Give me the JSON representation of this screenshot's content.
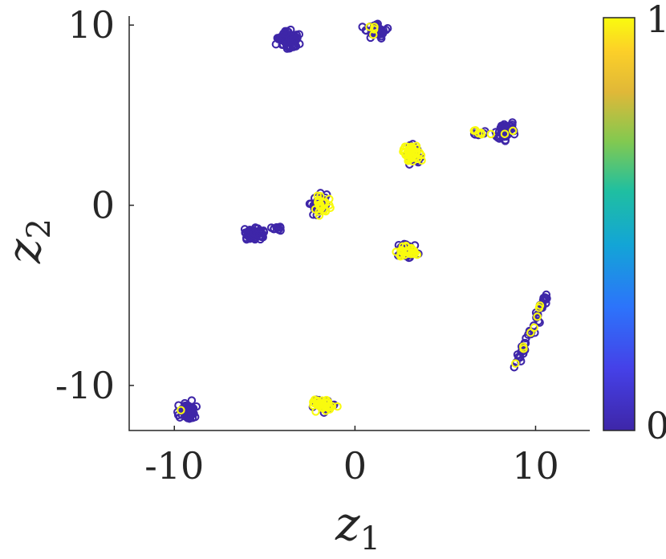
{
  "chart_data": {
    "type": "scatter",
    "title": "",
    "xlabel": "z",
    "xlabel_sub": "1",
    "ylabel": "z",
    "ylabel_sub": "2",
    "xlim": [
      -12.5,
      13
    ],
    "ylim": [
      -12.5,
      10.5
    ],
    "x_ticks": [
      -10,
      0,
      10
    ],
    "x_tick_labels": [
      "-10",
      "0",
      "10"
    ],
    "y_ticks": [
      -10,
      0,
      10
    ],
    "y_tick_labels": [
      "-10",
      "0",
      "10"
    ],
    "grid": false,
    "marker": "open-circle",
    "colorbar": {
      "min": 0,
      "max": 1,
      "tick_labels": [
        "0",
        "1"
      ],
      "colormap": "parula",
      "color_low": "#3e26a8",
      "color_high": "#f9fb0e"
    },
    "clusters": [
      {
        "center": [
          -3.7,
          9.2
        ],
        "spread": [
          0.55,
          0.45
        ],
        "count": 70,
        "yellow_fraction": 0.03
      },
      {
        "center": [
          1.2,
          9.7
        ],
        "spread": [
          0.45,
          0.35
        ],
        "count": 60,
        "yellow_fraction": 0.05
      },
      {
        "center": [
          8.4,
          4.1
        ],
        "spread": [
          0.55,
          0.45
        ],
        "count": 55,
        "yellow_fraction": 0.05
      },
      {
        "center": [
          6.9,
          4.0
        ],
        "spread": [
          0.35,
          0.15
        ],
        "count": 14,
        "yellow_fraction": 0.4
      },
      {
        "center": [
          3.2,
          2.8
        ],
        "spread": [
          0.45,
          0.45
        ],
        "count": 65,
        "yellow_fraction": 0.65
      },
      {
        "center": [
          -2.0,
          0.0
        ],
        "spread": [
          0.5,
          0.5
        ],
        "count": 70,
        "yellow_fraction": 0.3
      },
      {
        "center": [
          -5.6,
          -1.6
        ],
        "spread": [
          0.5,
          0.3
        ],
        "count": 60,
        "yellow_fraction": 0.02
      },
      {
        "center": [
          -4.3,
          -1.3
        ],
        "spread": [
          0.3,
          0.15
        ],
        "count": 10,
        "yellow_fraction": 0.0
      },
      {
        "center": [
          2.9,
          -2.5
        ],
        "spread": [
          0.55,
          0.3
        ],
        "count": 55,
        "yellow_fraction": 0.6
      },
      {
        "center": [
          -9.3,
          -11.4
        ],
        "spread": [
          0.45,
          0.45
        ],
        "count": 60,
        "yellow_fraction": 0.02
      },
      {
        "center": [
          -1.7,
          -11.1
        ],
        "spread": [
          0.55,
          0.3
        ],
        "count": 60,
        "yellow_fraction": 0.55
      }
    ],
    "strands": [
      {
        "from": [
          8.9,
          -9.0
        ],
        "to": [
          10.6,
          -5.0
        ],
        "width": 0.2,
        "count": 55,
        "yellow_fraction": 0.12
      }
    ]
  }
}
